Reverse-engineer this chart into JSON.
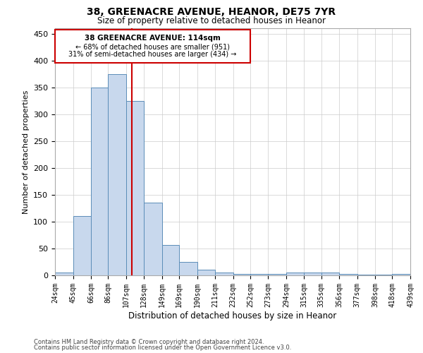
{
  "title1": "38, GREENACRE AVENUE, HEANOR, DE75 7YR",
  "title2": "Size of property relative to detached houses in Heanor",
  "xlabel": "Distribution of detached houses by size in Heanor",
  "ylabel": "Number of detached properties",
  "footer1": "Contains HM Land Registry data © Crown copyright and database right 2024.",
  "footer2": "Contains public sector information licensed under the Open Government Licence v3.0.",
  "property_label": "38 GREENACRE AVENUE: 114sqm",
  "pct_smaller": 68,
  "n_smaller": 951,
  "pct_larger_semi": 31,
  "n_larger_semi": 434,
  "bar_edges": [
    24,
    45,
    66,
    86,
    107,
    128,
    149,
    169,
    190,
    211,
    232,
    252,
    273,
    294,
    315,
    335,
    356,
    377,
    398,
    418,
    439
  ],
  "bar_heights": [
    5,
    110,
    350,
    375,
    325,
    135,
    57,
    25,
    10,
    5,
    2,
    2,
    2,
    5,
    5,
    5,
    2,
    1,
    1,
    2
  ],
  "bar_color": "#c8d8ed",
  "bar_edge_color": "#5b8db8",
  "red_line_x": 114,
  "ylim": [
    0,
    460
  ],
  "yticks": [
    0,
    50,
    100,
    150,
    200,
    250,
    300,
    350,
    400,
    450
  ],
  "annotation_box_edge": "#cc0000",
  "background_color": "#ffffff",
  "grid_color": "#cccccc"
}
